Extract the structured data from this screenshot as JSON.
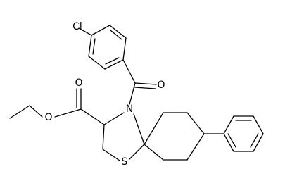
{
  "atoms": [
    {
      "label": "Cl"
    },
    {
      "label": "O"
    },
    {
      "label": "O"
    },
    {
      "label": "O"
    },
    {
      "label": "N"
    },
    {
      "label": "S"
    }
  ]
}
